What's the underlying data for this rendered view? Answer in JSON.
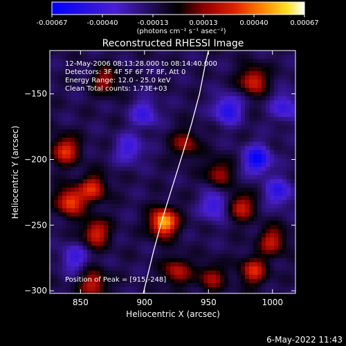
{
  "colorbar": {
    "ticks": [
      "-0.00067",
      "-0.00040",
      "-0.00013",
      "0.00013",
      "0.00040",
      "0.00067"
    ],
    "units": "(photons cm⁻² s⁻¹ asec⁻²)"
  },
  "footer_date": "6-May-2022 11:43",
  "chart_data": {
    "type": "heatmap",
    "title": "Reconstructed RHESSI Image",
    "xlabel": "Heliocentric X (arcsec)",
    "ylabel": "Heliocentric Y (arcsec)",
    "xlim": [
      826,
      1018
    ],
    "ylim": [
      -302,
      -117
    ],
    "xticks": [
      850,
      900,
      950,
      1000
    ],
    "yticks": [
      -150,
      -200,
      -250,
      -300
    ],
    "color_range": [
      -0.00067,
      0.00067
    ],
    "colormap": "blue-black-red-yellow-white",
    "annotations": [
      "12-May-2006 08:13:28.000 to 08:14:40.000",
      "Detectors: 3F 4F 5F 6F 7F 8F, Att 0",
      "Energy Range: 12.0 - 25.0 keV",
      "Clean    Total counts: 1.73E+03"
    ],
    "peak_label": "Position of Peak = [915,-248]",
    "peak": {
      "x": 915,
      "y": -248
    },
    "limb_curve": [
      [
        899,
        -302
      ],
      [
        907,
        -270
      ],
      [
        914,
        -245
      ],
      [
        922,
        -220
      ],
      [
        930,
        -195
      ],
      [
        937,
        -172
      ],
      [
        943,
        -150
      ],
      [
        948,
        -125
      ],
      [
        950,
        -117
      ]
    ],
    "hot_spots": [
      {
        "x": 915,
        "y": -248,
        "v": 0.00067
      },
      {
        "x": 842,
        "y": -232,
        "v": 0.0005
      },
      {
        "x": 838,
        "y": -193,
        "v": 0.00044
      },
      {
        "x": 860,
        "y": -222,
        "v": 0.0004
      },
      {
        "x": 862,
        "y": -256,
        "v": 0.00042
      },
      {
        "x": 985,
        "y": -140,
        "v": 0.00042
      },
      {
        "x": 975,
        "y": -236,
        "v": 0.00038
      },
      {
        "x": 1000,
        "y": -262,
        "v": 0.00036
      },
      {
        "x": 985,
        "y": -285,
        "v": 0.0004
      },
      {
        "x": 860,
        "y": -295,
        "v": 0.00038
      },
      {
        "x": 932,
        "y": -188,
        "v": 0.0003
      },
      {
        "x": 925,
        "y": -285,
        "v": 0.00034
      },
      {
        "x": 870,
        "y": -140,
        "v": 0.0003
      },
      {
        "x": 952,
        "y": -290,
        "v": 0.0003
      },
      {
        "x": 958,
        "y": -210,
        "v": 0.0003
      }
    ],
    "cold_spots": [
      {
        "x": 988,
        "y": -200,
        "v": -0.0005
      },
      {
        "x": 965,
        "y": -162,
        "v": -0.0004
      },
      {
        "x": 955,
        "y": -235,
        "v": -0.00035
      },
      {
        "x": 1005,
        "y": -225,
        "v": -0.00034
      },
      {
        "x": 888,
        "y": -192,
        "v": -0.0003
      },
      {
        "x": 900,
        "y": -165,
        "v": -0.0003
      },
      {
        "x": 845,
        "y": -275,
        "v": -0.00028
      },
      {
        "x": 1010,
        "y": -160,
        "v": -0.0003
      }
    ]
  }
}
